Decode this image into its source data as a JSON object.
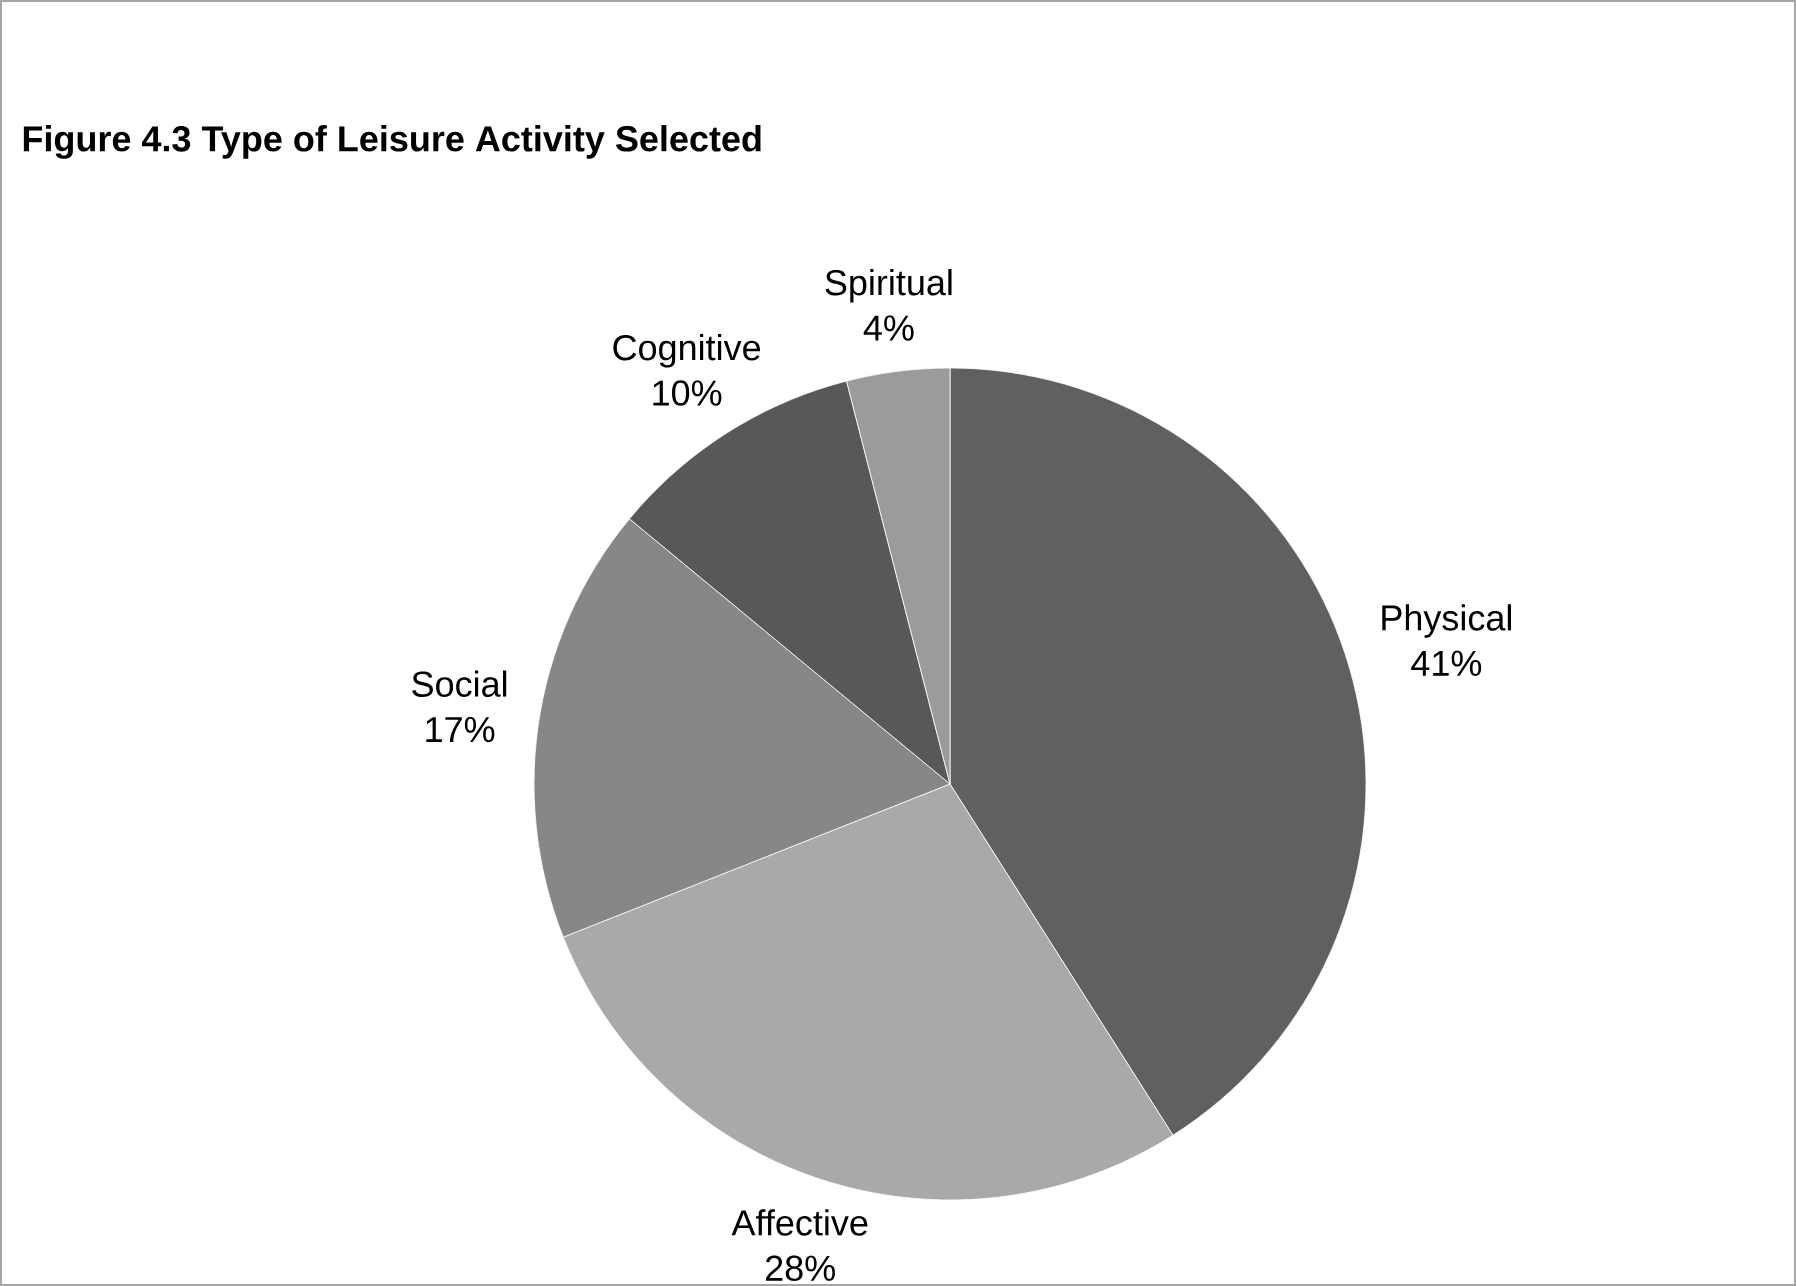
{
  "chart_data": {
    "type": "pie",
    "title": "Figure 4.3  Type of Leisure Activity Selected",
    "categories": [
      "Physical",
      "Affective",
      "Social",
      "Cognitive",
      "Spiritual"
    ],
    "values": [
      41,
      28,
      17,
      10,
      4
    ],
    "value_labels": [
      "41%",
      "28%",
      "17%",
      "10%",
      "4%"
    ],
    "colors": [
      "#606060",
      "#a9a9a9",
      "#878787",
      "#585858",
      "#9b9b9b"
    ]
  }
}
